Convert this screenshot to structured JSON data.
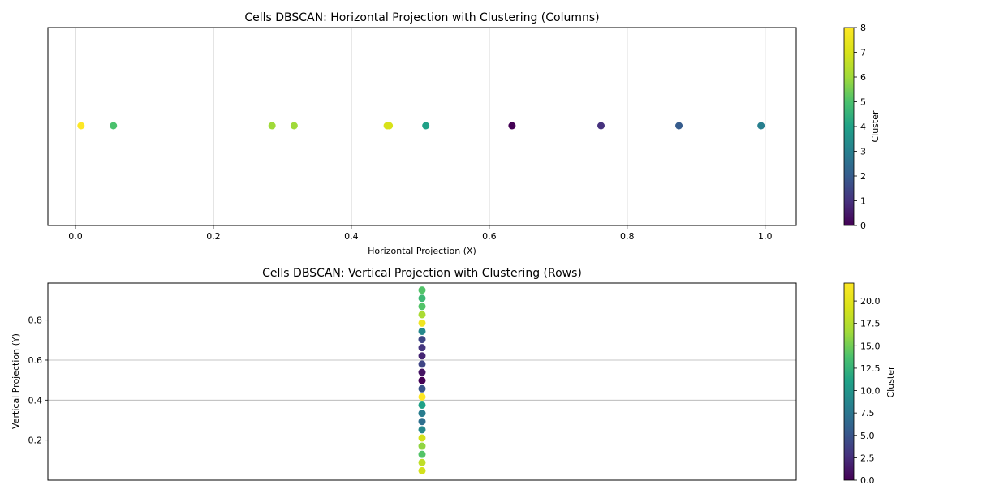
{
  "chart_data": [
    {
      "type": "scatter",
      "title": "Cells DBSCAN: Horizontal Projection with Clustering (Columns)",
      "xlabel": "Horizontal Projection (X)",
      "ylabel": "",
      "xlim": [
        -0.04,
        1.045
      ],
      "xticks": [
        0.0,
        0.2,
        0.4,
        0.6,
        0.8,
        1.0
      ],
      "xtick_labels": [
        "0.0",
        "0.2",
        "0.4",
        "0.6",
        "0.8",
        "1.0"
      ],
      "grid": "vertical",
      "points": [
        {
          "x": 0.008,
          "cluster": 8
        },
        {
          "x": 0.055,
          "cluster": 5
        },
        {
          "x": 0.285,
          "cluster": 6
        },
        {
          "x": 0.317,
          "cluster": 6
        },
        {
          "x": 0.452,
          "cluster": 7
        },
        {
          "x": 0.455,
          "cluster": 7
        },
        {
          "x": 0.508,
          "cluster": 4
        },
        {
          "x": 0.633,
          "cluster": 0
        },
        {
          "x": 0.762,
          "cluster": 1
        },
        {
          "x": 0.875,
          "cluster": 2
        },
        {
          "x": 0.994,
          "cluster": 3
        }
      ],
      "colorbar": {
        "label": "Cluster",
        "min": 0,
        "max": 8,
        "ticks": [
          0,
          1,
          2,
          3,
          4,
          5,
          6,
          7,
          8
        ],
        "tick_labels": [
          "0",
          "1",
          "2",
          "3",
          "4",
          "5",
          "6",
          "7",
          "8"
        ]
      }
    },
    {
      "type": "scatter",
      "title": "Cells DBSCAN: Vertical Projection with Clustering (Rows)",
      "xlabel": "",
      "ylabel": "Vertical Projection (Y)",
      "ylim": [
        0.0,
        0.985
      ],
      "yticks": [
        0.2,
        0.4,
        0.6,
        0.8
      ],
      "ytick_labels": [
        "0.2",
        "0.4",
        "0.6",
        "0.8"
      ],
      "grid": "horizontal",
      "x_constant": 0.5,
      "points": [
        {
          "y": 0.95,
          "cluster": 14
        },
        {
          "y": 0.909,
          "cluster": 13
        },
        {
          "y": 0.868,
          "cluster": 14
        },
        {
          "y": 0.827,
          "cluster": 17
        },
        {
          "y": 0.785,
          "cluster": 21
        },
        {
          "y": 0.744,
          "cluster": 9
        },
        {
          "y": 0.703,
          "cluster": 4
        },
        {
          "y": 0.662,
          "cluster": 3
        },
        {
          "y": 0.621,
          "cluster": 2
        },
        {
          "y": 0.58,
          "cluster": 4
        },
        {
          "y": 0.539,
          "cluster": 1
        },
        {
          "y": 0.498,
          "cluster": 0
        },
        {
          "y": 0.457,
          "cluster": 5
        },
        {
          "y": 0.416,
          "cluster": 22
        },
        {
          "y": 0.375,
          "cluster": 11
        },
        {
          "y": 0.334,
          "cluster": 8
        },
        {
          "y": 0.293,
          "cluster": 7
        },
        {
          "y": 0.252,
          "cluster": 9
        },
        {
          "y": 0.211,
          "cluster": 19
        },
        {
          "y": 0.17,
          "cluster": 16
        },
        {
          "y": 0.129,
          "cluster": 14
        },
        {
          "y": 0.088,
          "cluster": 18
        },
        {
          "y": 0.047,
          "cluster": 19
        }
      ],
      "colorbar": {
        "label": "Cluster",
        "min": 0,
        "max": 22,
        "ticks": [
          0,
          2.5,
          5,
          7.5,
          10,
          12.5,
          15,
          17.5,
          20
        ],
        "tick_labels": [
          "0.0",
          "2.5",
          "5.0",
          "7.5",
          "10.0",
          "12.5",
          "15.0",
          "17.5",
          "20.0"
        ]
      }
    }
  ]
}
